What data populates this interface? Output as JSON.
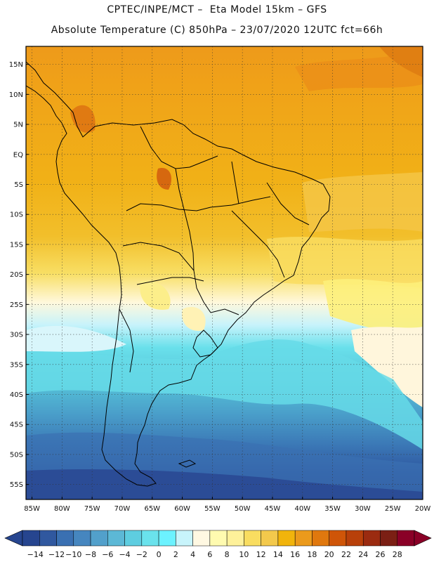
{
  "header": {
    "line1": "CPTEC/INPE/MCT –  Eta Model 15km – GFS",
    "line2": "Absolute Temperature (C) 850hPa – 23/07/2020 12UTC fct=66h"
  },
  "map": {
    "lat_labels": [
      "15N",
      "10N",
      "5N",
      "EQ",
      "5S",
      "10S",
      "15S",
      "20S",
      "25S",
      "30S",
      "35S",
      "40S",
      "45S",
      "50S",
      "55S"
    ],
    "lon_labels": [
      "85W",
      "80W",
      "75W",
      "70W",
      "65W",
      "60W",
      "55W",
      "50W",
      "45W",
      "40W",
      "35W",
      "30W",
      "25W",
      "20W"
    ],
    "lat_values": [
      15,
      10,
      5,
      0,
      -5,
      -10,
      -15,
      -20,
      -25,
      -30,
      -35,
      -40,
      -45,
      -50,
      -55
    ],
    "lon_values": [
      -85,
      -80,
      -75,
      -70,
      -65,
      -60,
      -55,
      -50,
      -45,
      -40,
      -35,
      -30,
      -25,
      -20
    ],
    "lon_range": [
      -86,
      -20
    ],
    "lat_range": [
      18,
      -57.5
    ]
  },
  "colorbar": {
    "labels": [
      "-14",
      "-12",
      "-10",
      "-8",
      "-6",
      "-4",
      "-2",
      "0",
      "2",
      "4",
      "6",
      "8",
      "10",
      "12",
      "14",
      "16",
      "18",
      "20",
      "22",
      "24",
      "26",
      "28"
    ],
    "colors": [
      "#26458f",
      "#30589f",
      "#3a70b2",
      "#4686bf",
      "#52a0cb",
      "#5cb8d6",
      "#5ecde0",
      "#6ae2ec",
      "#6cf2ff",
      "#c8f4fb",
      "#fff8e2",
      "#fffbb0",
      "#fef19a",
      "#f9dd60",
      "#f3c94c",
      "#f1b40c",
      "#eb9a1c",
      "#e0780e",
      "#cf5508",
      "#b8400a",
      "#9b2b10",
      "#7b1f14",
      "#8a0027"
    ]
  }
}
